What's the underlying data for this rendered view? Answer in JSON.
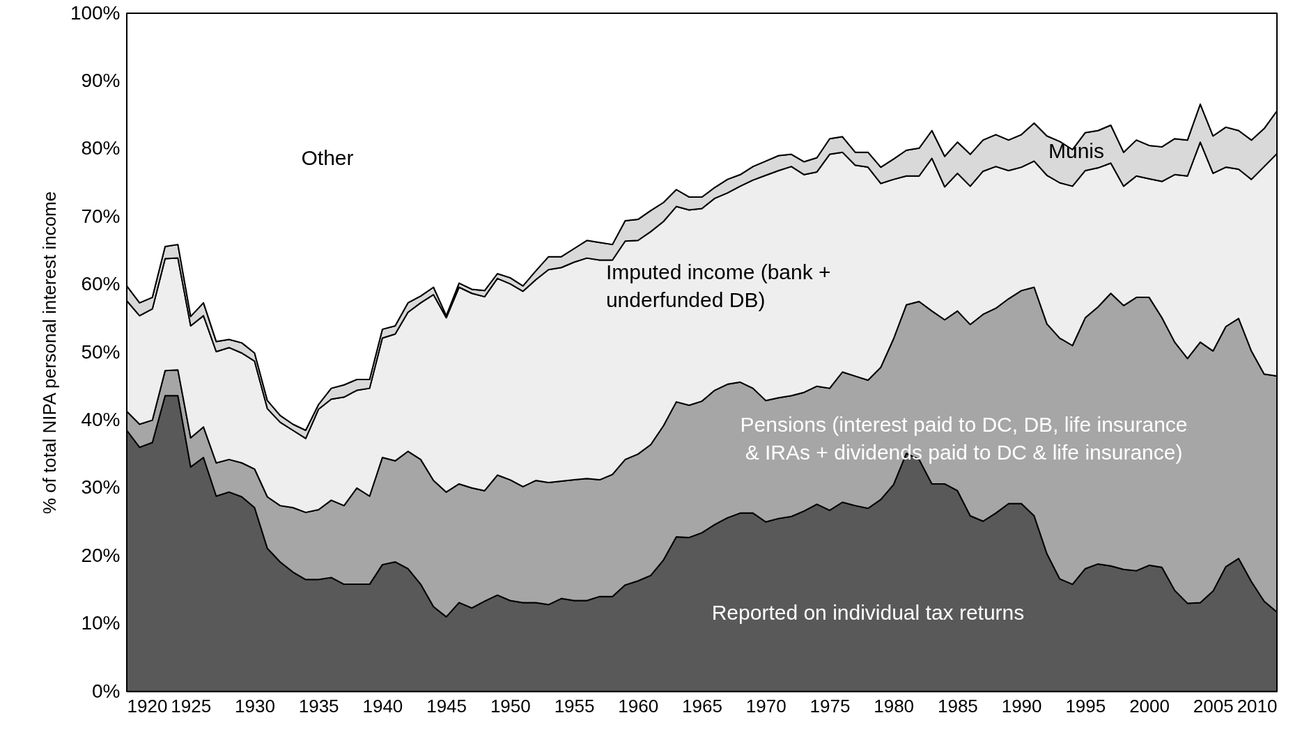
{
  "chart_data": {
    "type": "area",
    "stacked": true,
    "ylabel": "% of total NIPA personal interest income",
    "x": [
      1920,
      1921,
      1922,
      1923,
      1924,
      1925,
      1926,
      1927,
      1928,
      1929,
      1930,
      1931,
      1932,
      1933,
      1934,
      1935,
      1936,
      1937,
      1938,
      1939,
      1940,
      1941,
      1942,
      1943,
      1944,
      1945,
      1946,
      1947,
      1948,
      1949,
      1950,
      1951,
      1952,
      1953,
      1954,
      1955,
      1956,
      1957,
      1958,
      1959,
      1960,
      1961,
      1962,
      1963,
      1964,
      1965,
      1966,
      1967,
      1968,
      1969,
      1970,
      1971,
      1972,
      1973,
      1974,
      1975,
      1976,
      1977,
      1978,
      1979,
      1980,
      1981,
      1982,
      1983,
      1984,
      1985,
      1986,
      1987,
      1988,
      1989,
      1990,
      1991,
      1992,
      1993,
      1994,
      1995,
      1996,
      1997,
      1998,
      1999,
      2000,
      2001,
      2002,
      2003,
      2004,
      2005,
      2006,
      2007,
      2008,
      2009,
      2010
    ],
    "xlim": [
      1920,
      2010
    ],
    "xticks": [
      1920,
      1925,
      1930,
      1935,
      1940,
      1945,
      1950,
      1955,
      1960,
      1965,
      1970,
      1975,
      1980,
      1985,
      1990,
      1995,
      2000,
      2005,
      2010
    ],
    "ylim": [
      0,
      100
    ],
    "yticks": [
      {
        "value": 0,
        "label": "0%"
      },
      {
        "value": 10,
        "label": "10%"
      },
      {
        "value": 20,
        "label": "20%"
      },
      {
        "value": 30,
        "label": "30%"
      },
      {
        "value": 40,
        "label": "40%"
      },
      {
        "value": 50,
        "label": "50%"
      },
      {
        "value": 60,
        "label": "60%"
      },
      {
        "value": 70,
        "label": "70%"
      },
      {
        "value": 80,
        "label": "80%"
      },
      {
        "value": 90,
        "label": "90%"
      },
      {
        "value": 100,
        "label": "100%"
      }
    ],
    "series": [
      {
        "name": "Reported on individual tax returns",
        "color": "#595959",
        "values": [
          38.5,
          36.0,
          36.7,
          43.6,
          43.6,
          33.1,
          34.5,
          28.8,
          29.4,
          28.7,
          27.1,
          21.1,
          19.1,
          17.6,
          16.5,
          16.5,
          16.8,
          15.8,
          15.8,
          15.8,
          18.7,
          19.1,
          18.1,
          15.8,
          12.5,
          11.0,
          13.1,
          12.3,
          13.3,
          14.2,
          13.4,
          13.1,
          13.1,
          12.8,
          13.7,
          13.4,
          13.4,
          14.0,
          14.0,
          15.7,
          16.3,
          17.1,
          19.4,
          22.8,
          22.7,
          23.4,
          24.6,
          25.6,
          26.3,
          26.3,
          25.0,
          25.5,
          25.8,
          26.6,
          27.6,
          26.7,
          27.9,
          27.4,
          27.0,
          28.3,
          30.5,
          35.1,
          34.2,
          30.6,
          30.6,
          29.6,
          25.9,
          25.1,
          26.3,
          27.7,
          27.7,
          25.9,
          20.3,
          16.6,
          15.8,
          18.1,
          18.8,
          18.5,
          18.0,
          17.8,
          18.6,
          18.3,
          14.9,
          13.0,
          13.1,
          14.8,
          18.4,
          19.6,
          16.2,
          13.3,
          11.7
        ]
      },
      {
        "name": "Pensions (interest paid to DC, DB, life insurance & IRAs + dividends paid to DC & life insurance)",
        "color": "#a6a6a6",
        "values": [
          2.8,
          3.4,
          3.3,
          3.7,
          3.8,
          4.3,
          4.5,
          4.9,
          4.8,
          5.0,
          5.7,
          7.6,
          8.3,
          9.5,
          9.9,
          10.3,
          11.4,
          11.6,
          14.2,
          13.0,
          15.8,
          14.9,
          17.3,
          18.4,
          18.6,
          18.4,
          17.5,
          17.7,
          16.3,
          17.7,
          17.8,
          17.1,
          18.0,
          18.0,
          17.3,
          17.8,
          18.0,
          17.2,
          18.0,
          18.5,
          18.7,
          19.3,
          19.8,
          19.9,
          19.5,
          19.4,
          19.8,
          19.7,
          19.3,
          18.4,
          17.9,
          17.8,
          17.8,
          17.5,
          17.4,
          18.0,
          19.2,
          19.1,
          18.9,
          19.5,
          21.5,
          21.9,
          23.3,
          25.5,
          24.2,
          26.5,
          28.2,
          30.5,
          30.2,
          30.2,
          31.4,
          33.7,
          33.9,
          35.5,
          35.2,
          37.0,
          37.9,
          40.2,
          38.9,
          40.3,
          39.5,
          36.8,
          36.6,
          36.1,
          38.4,
          35.4,
          35.4,
          35.4,
          34.0,
          33.5,
          34.8
        ]
      },
      {
        "name": "Imputed income (bank + underfunded DB)",
        "color": "#eeeeee",
        "values": [
          16.3,
          16.0,
          16.4,
          16.5,
          16.5,
          16.5,
          16.4,
          16.4,
          16.5,
          16.2,
          15.9,
          13.0,
          12.3,
          11.4,
          10.9,
          14.8,
          14.9,
          16.0,
          14.4,
          15.9,
          17.6,
          18.7,
          20.5,
          23.1,
          27.4,
          25.7,
          29.0,
          28.7,
          28.6,
          29.0,
          28.9,
          28.8,
          29.6,
          31.4,
          31.5,
          32.1,
          32.5,
          32.4,
          31.6,
          32.2,
          31.5,
          31.4,
          30.1,
          28.8,
          28.8,
          28.4,
          28.3,
          28.2,
          28.9,
          30.7,
          33.2,
          33.5,
          33.8,
          32.1,
          31.6,
          34.5,
          32.4,
          31.1,
          31.4,
          27.1,
          23.5,
          19.0,
          18.5,
          22.5,
          19.6,
          20.3,
          20.4,
          21.1,
          20.9,
          18.9,
          18.2,
          18.6,
          21.9,
          22.9,
          23.5,
          21.7,
          20.5,
          19.2,
          17.6,
          17.9,
          17.5,
          20.1,
          24.7,
          26.9,
          29.5,
          26.2,
          23.5,
          22.0,
          25.3,
          30.6,
          32.8
        ]
      },
      {
        "name": "Munis",
        "color": "#d9d9d9",
        "values": [
          2.2,
          1.9,
          1.7,
          1.8,
          2.0,
          1.4,
          1.9,
          1.5,
          1.2,
          1.5,
          1.2,
          1.2,
          1.0,
          0.9,
          1.2,
          0.7,
          1.6,
          1.8,
          1.6,
          1.3,
          1.3,
          1.2,
          1.4,
          1.0,
          1.1,
          0.3,
          0.6,
          0.6,
          0.9,
          0.7,
          0.9,
          0.8,
          1.3,
          1.9,
          1.6,
          2.0,
          2.6,
          2.6,
          2.3,
          3.0,
          3.1,
          3.1,
          2.8,
          2.5,
          1.9,
          1.7,
          1.6,
          2.0,
          1.7,
          2.0,
          2.1,
          2.2,
          1.8,
          1.9,
          2.1,
          2.3,
          2.3,
          1.9,
          2.2,
          2.4,
          3.0,
          3.8,
          4.1,
          4.1,
          4.5,
          4.6,
          4.7,
          4.6,
          4.7,
          4.5,
          4.8,
          5.6,
          5.8,
          6.1,
          5.4,
          5.6,
          5.5,
          5.6,
          5.0,
          5.3,
          4.9,
          5.1,
          5.3,
          5.3,
          5.6,
          5.5,
          5.9,
          5.7,
          5.8,
          5.6,
          6.3
        ]
      },
      {
        "name": "Other",
        "color": "#ffffff",
        "values": [
          40.2,
          42.7,
          41.9,
          34.4,
          34.1,
          44.7,
          42.7,
          48.4,
          48.1,
          48.6,
          50.1,
          57.1,
          59.3,
          60.6,
          61.5,
          57.7,
          55.3,
          54.8,
          54.0,
          54.0,
          46.6,
          46.1,
          42.7,
          41.7,
          40.4,
          44.6,
          39.8,
          40.7,
          40.9,
          38.4,
          39.0,
          40.2,
          38.0,
          35.9,
          35.9,
          34.7,
          33.5,
          33.8,
          34.1,
          30.6,
          30.4,
          29.1,
          27.9,
          26.0,
          27.1,
          27.1,
          25.7,
          24.5,
          23.8,
          22.6,
          21.8,
          21.0,
          20.8,
          21.9,
          21.3,
          18.5,
          18.2,
          20.5,
          20.5,
          22.7,
          21.5,
          20.2,
          19.9,
          17.3,
          21.1,
          19.0,
          20.8,
          18.7,
          17.9,
          18.7,
          17.9,
          16.2,
          18.1,
          18.9,
          20.1,
          17.6,
          17.3,
          16.5,
          20.5,
          18.7,
          19.5,
          19.7,
          18.5,
          18.7,
          13.4,
          18.1,
          16.8,
          17.3,
          18.7,
          17.0,
          14.4
        ]
      }
    ]
  }
}
